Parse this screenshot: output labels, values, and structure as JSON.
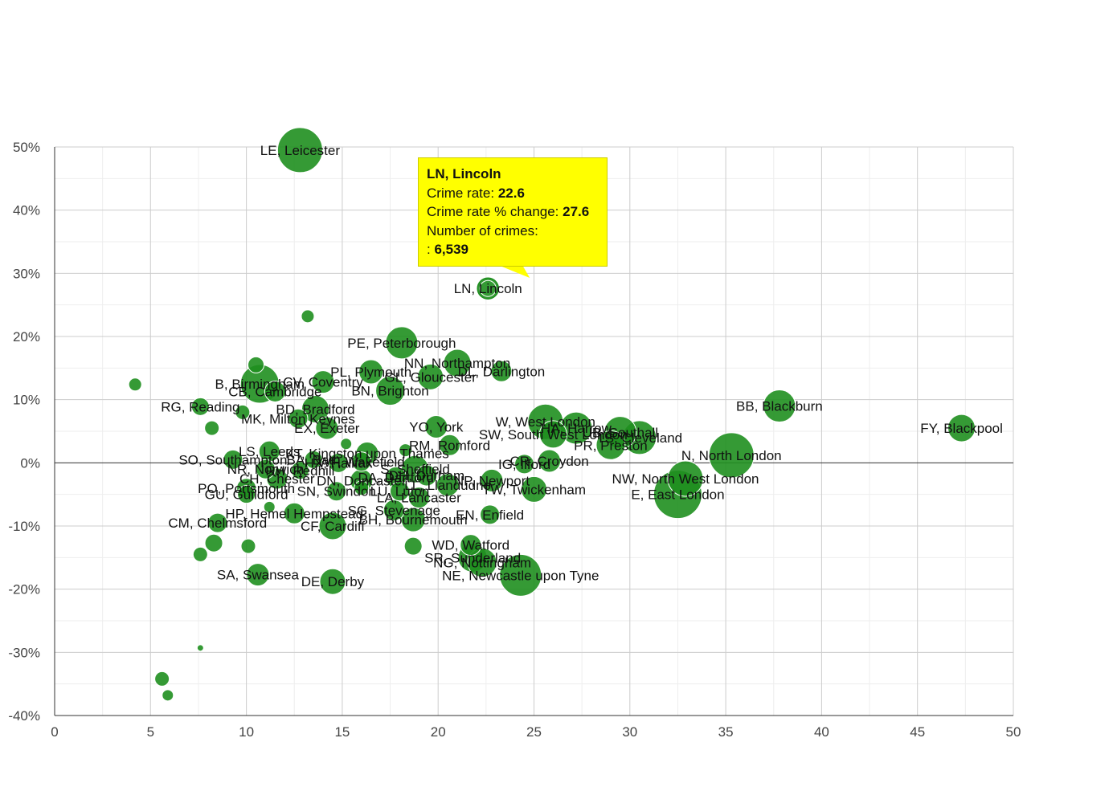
{
  "chart_data": {
    "type": "scatter",
    "title": "",
    "xlabel": "",
    "ylabel": "",
    "xlim": [
      0,
      50
    ],
    "ylim": [
      -40,
      50
    ],
    "x_ticks": [
      "0",
      "5",
      "10",
      "15",
      "20",
      "25",
      "30",
      "35",
      "40",
      "45",
      "50"
    ],
    "y_ticks": [
      "50%",
      "40%",
      "30%",
      "20%",
      "10%",
      "0%",
      "-10%",
      "-20%",
      "-30%",
      "-40%"
    ],
    "grid": true,
    "bubble_color": "#1f8f1f",
    "points": [
      {
        "label": "LE, Leicester",
        "x": 12.8,
        "y": 49.5,
        "size": 28
      },
      {
        "label": "LN, Lincoln",
        "x": 22.6,
        "y": 27.6,
        "size": 13
      },
      {
        "label": "",
        "x": 13.2,
        "y": 23.2,
        "size": 8
      },
      {
        "label": "PE, Peterborough",
        "x": 18.1,
        "y": 19.0,
        "size": 20
      },
      {
        "label": "NN, Northampton",
        "x": 21.0,
        "y": 15.8,
        "size": 17
      },
      {
        "label": "DL, Darlington",
        "x": 23.3,
        "y": 14.5,
        "size": 13
      },
      {
        "label": "PL, Plymouth",
        "x": 16.5,
        "y": 14.4,
        "size": 15
      },
      {
        "label": "GL, Gloucester",
        "x": 19.6,
        "y": 13.6,
        "size": 16
      },
      {
        "label": "",
        "x": 10.5,
        "y": 15.5,
        "size": 10
      },
      {
        "label": "",
        "x": 4.2,
        "y": 12.4,
        "size": 8
      },
      {
        "label": "B, Birmingham",
        "x": 10.7,
        "y": 12.5,
        "size": 24
      },
      {
        "label": "CV, Coventry",
        "x": 14.0,
        "y": 12.8,
        "size": 14
      },
      {
        "label": "CB, Cambridge",
        "x": 11.5,
        "y": 11.3,
        "size": 13
      },
      {
        "label": "BN, Brighton",
        "x": 17.5,
        "y": 11.4,
        "size": 18
      },
      {
        "label": "RG, Reading",
        "x": 7.6,
        "y": 8.9,
        "size": 11
      },
      {
        "label": "BD, Bradford",
        "x": 13.6,
        "y": 8.5,
        "size": 17
      },
      {
        "label": "MK, Milton Keynes",
        "x": 12.7,
        "y": 7.0,
        "size": 12
      },
      {
        "label": "EX, Exeter",
        "x": 14.2,
        "y": 5.5,
        "size": 14
      },
      {
        "label": "",
        "x": 8.2,
        "y": 5.5,
        "size": 9
      },
      {
        "label": "",
        "x": 9.8,
        "y": 8.0,
        "size": 9
      },
      {
        "label": "BB, Blackburn",
        "x": 37.8,
        "y": 9.0,
        "size": 20
      },
      {
        "label": "FY, Blackpool",
        "x": 47.3,
        "y": 5.5,
        "size": 17
      },
      {
        "label": "YO, York",
        "x": 19.9,
        "y": 5.7,
        "size": 14
      },
      {
        "label": "W, West London",
        "x": 25.6,
        "y": 6.5,
        "size": 22
      },
      {
        "label": "HA, Harrow",
        "x": 27.2,
        "y": 5.5,
        "size": 20
      },
      {
        "label": "UB, Southall",
        "x": 29.5,
        "y": 4.8,
        "size": 20
      },
      {
        "label": "SW, South West London",
        "x": 26.0,
        "y": 4.5,
        "size": 17
      },
      {
        "label": "TS, Cleveland",
        "x": 30.5,
        "y": 4.0,
        "size": 21
      },
      {
        "label": "PR, Preston",
        "x": 29.0,
        "y": 2.8,
        "size": 18
      },
      {
        "label": "N, North London",
        "x": 35.3,
        "y": 1.2,
        "size": 28
      },
      {
        "label": "RM, Romford",
        "x": 20.6,
        "y": 2.8,
        "size": 13
      },
      {
        "label": "KT, Kingston upon Thames",
        "x": 16.3,
        "y": 1.5,
        "size": 14
      },
      {
        "label": "LS, Leeds",
        "x": 11.2,
        "y": 1.8,
        "size": 13
      },
      {
        "label": "SO, Southampton",
        "x": 9.3,
        "y": 0.5,
        "size": 12
      },
      {
        "label": "BA, Bath",
        "x": 13.5,
        "y": 0.5,
        "size": 11
      },
      {
        "label": "HX, Halifax",
        "x": 14.8,
        "y": 0.0,
        "size": 12
      },
      {
        "label": "WF, Wakefield",
        "x": 16.0,
        "y": 0.2,
        "size": 12
      },
      {
        "label": "",
        "x": 15.2,
        "y": 3.0,
        "size": 7
      },
      {
        "label": "",
        "x": 18.3,
        "y": 2.0,
        "size": 8
      },
      {
        "label": "CR, Croydon",
        "x": 25.8,
        "y": 0.3,
        "size": 14
      },
      {
        "label": "IG, Ilford",
        "x": 24.5,
        "y": -0.2,
        "size": 12
      },
      {
        "label": "NR, Norwich",
        "x": 11.0,
        "y": -1.0,
        "size": 12
      },
      {
        "label": "RH, Redhill",
        "x": 12.8,
        "y": -1.2,
        "size": 11
      },
      {
        "label": "S, Sheffield",
        "x": 18.8,
        "y": -1.0,
        "size": 17
      },
      {
        "label": "DH, Durham",
        "x": 19.4,
        "y": -2.0,
        "size": 13
      },
      {
        "label": "DA, Dartford",
        "x": 17.8,
        "y": -2.3,
        "size": 13
      },
      {
        "label": "DN, Doncaster",
        "x": 16.0,
        "y": -2.8,
        "size": 14
      },
      {
        "label": "CH, Chester",
        "x": 11.6,
        "y": -2.5,
        "size": 13
      },
      {
        "label": "PO, Portsmouth",
        "x": 10.0,
        "y": -4.0,
        "size": 12
      },
      {
        "label": "NP, Newport",
        "x": 22.8,
        "y": -2.8,
        "size": 14
      },
      {
        "label": "LL, Llandudno",
        "x": 20.5,
        "y": -3.5,
        "size": 14
      },
      {
        "label": "TW, Twickenham",
        "x": 25.0,
        "y": -4.2,
        "size": 16
      },
      {
        "label": "LU, Luton",
        "x": 18.0,
        "y": -4.5,
        "size": 12
      },
      {
        "label": "GU, Guildford",
        "x": 10.0,
        "y": -5.0,
        "size": 11
      },
      {
        "label": "LA, Lancaster",
        "x": 19.0,
        "y": -5.5,
        "size": 13
      },
      {
        "label": "SN, Swindon",
        "x": 14.7,
        "y": -4.5,
        "size": 12
      },
      {
        "label": "",
        "x": 16.0,
        "y": -4.0,
        "size": 9
      },
      {
        "label": "NW, North West London",
        "x": 32.9,
        "y": -2.5,
        "size": 22
      },
      {
        "label": "E, East London",
        "x": 32.5,
        "y": -5.0,
        "size": 30
      },
      {
        "label": "HP, Hemel Hempstead",
        "x": 12.5,
        "y": -8.0,
        "size": 13
      },
      {
        "label": "SG, Stevenage",
        "x": 17.7,
        "y": -7.5,
        "size": 13
      },
      {
        "label": "EN, Enfield",
        "x": 22.7,
        "y": -8.2,
        "size": 12
      },
      {
        "label": "BH, Bournemouth",
        "x": 18.7,
        "y": -9.0,
        "size": 15
      },
      {
        "label": "CF, Cardiff",
        "x": 14.5,
        "y": -10.0,
        "size": 17
      },
      {
        "label": "",
        "x": 11.2,
        "y": -7.0,
        "size": 7
      },
      {
        "label": "CM, Chelmsford",
        "x": 8.5,
        "y": -9.5,
        "size": 12
      },
      {
        "label": "",
        "x": 8.3,
        "y": -12.7,
        "size": 11
      },
      {
        "label": "",
        "x": 10.1,
        "y": -13.2,
        "size": 9
      },
      {
        "label": "",
        "x": 7.6,
        "y": -14.5,
        "size": 9
      },
      {
        "label": "WD, Watford",
        "x": 21.7,
        "y": -13.0,
        "size": 13
      },
      {
        "label": "",
        "x": 18.7,
        "y": -13.2,
        "size": 11
      },
      {
        "label": "SR, Sunderland",
        "x": 21.8,
        "y": -15.0,
        "size": 18
      },
      {
        "label": "NG, Nottingham",
        "x": 22.3,
        "y": -15.8,
        "size": 18
      },
      {
        "label": "NE, Newcastle upon Tyne",
        "x": 24.3,
        "y": -17.8,
        "size": 26
      },
      {
        "label": "SA, Swansea",
        "x": 10.6,
        "y": -17.7,
        "size": 14
      },
      {
        "label": "DE, Derby",
        "x": 14.5,
        "y": -18.8,
        "size": 16
      },
      {
        "label": "",
        "x": 7.6,
        "y": -29.3,
        "size": 4
      },
      {
        "label": "",
        "x": 5.6,
        "y": -34.2,
        "size": 9
      },
      {
        "label": "",
        "x": 5.9,
        "y": -36.8,
        "size": 7
      }
    ]
  },
  "tooltip": {
    "title": "LN, Lincoln",
    "rate_label": "Crime rate:",
    "rate_value": "22.6",
    "change_label": "Crime rate % change:",
    "change_value": "27.6",
    "count_label": "Number of crimes:",
    "count_prefix": ":",
    "count_value": "6,539",
    "background": "#ffff00"
  }
}
